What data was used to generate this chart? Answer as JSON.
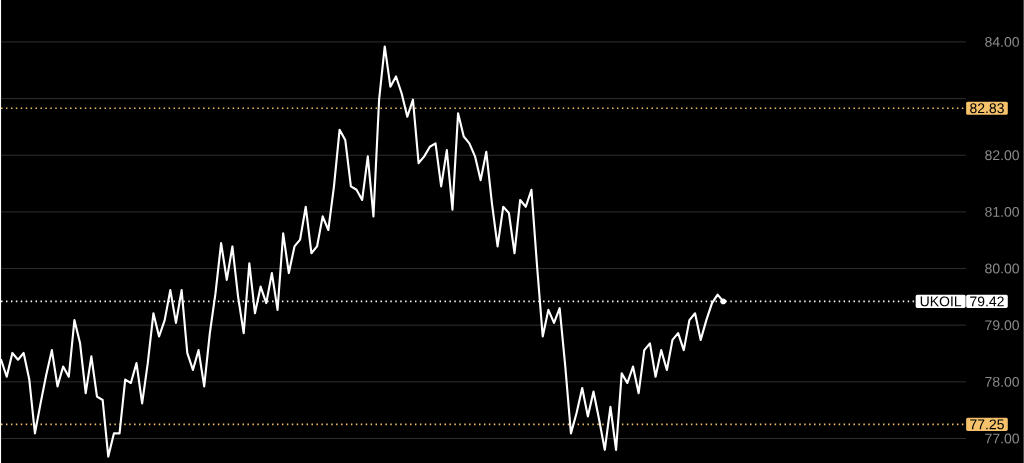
{
  "chart_data": {
    "type": "line",
    "categories": [
      null,
      null,
      null,
      null,
      null,
      null,
      null,
      null,
      null,
      null,
      null,
      null,
      null,
      null,
      null,
      null,
      null,
      null,
      null,
      null,
      null,
      null,
      null,
      null,
      null,
      null,
      null,
      null,
      null,
      null,
      null,
      null,
      null,
      null,
      null,
      null,
      null,
      null,
      null,
      null,
      null,
      null,
      null,
      null,
      null,
      null,
      null,
      null,
      null,
      null,
      null,
      null,
      null,
      null,
      null,
      null,
      null,
      null,
      null,
      null,
      null,
      null,
      null,
      null,
      null,
      null,
      null,
      null,
      null,
      null,
      null,
      null,
      null,
      null,
      null,
      null,
      null,
      null,
      null,
      null,
      null,
      null,
      null,
      null,
      null,
      null,
      null,
      null,
      null,
      null,
      null,
      null,
      null,
      null,
      null,
      null,
      null,
      null,
      null,
      null,
      null,
      null,
      null,
      null,
      null,
      null,
      null,
      null,
      null,
      null,
      null,
      null,
      null,
      null,
      null,
      null,
      null,
      null,
      null,
      null,
      null,
      null,
      null,
      null,
      null,
      null,
      null,
      null,
      null,
      null,
      null,
      null,
      null,
      null,
      null,
      null,
      null,
      null,
      null,
      null,
      null,
      null,
      null,
      null,
      null,
      null,
      null,
      null,
      null,
      null,
      null,
      null,
      null,
      null,
      null,
      null,
      null,
      null,
      null,
      null,
      null,
      null,
      null,
      null,
      null,
      null,
      null,
      null,
      null,
      null,
      null,
      null
    ],
    "series": [
      {
        "name": "UKOIL",
        "color": "#ffffff",
        "values": [
          78.39,
          78.09,
          78.51,
          78.39,
          78.51,
          78.04,
          77.09,
          77.62,
          78.12,
          78.56,
          77.92,
          78.27,
          78.09,
          79.09,
          78.68,
          77.8,
          78.45,
          77.74,
          77.68,
          76.68,
          77.09,
          77.09,
          78.04,
          77.98,
          78.33,
          77.62,
          78.33,
          79.21,
          78.8,
          79.09,
          79.62,
          79.04,
          79.62,
          78.51,
          78.21,
          78.56,
          77.92,
          78.86,
          79.56,
          80.45,
          79.8,
          80.39,
          79.51,
          78.86,
          80.09,
          79.21,
          79.68,
          79.39,
          79.92,
          79.27,
          80.62,
          79.92,
          80.39,
          80.51,
          81.09,
          80.27,
          80.39,
          80.92,
          80.68,
          81.45,
          82.45,
          82.27,
          81.45,
          81.39,
          81.21,
          81.98,
          80.92,
          82.98,
          83.92,
          83.21,
          83.39,
          83.09,
          82.68,
          82.98,
          81.86,
          81.98,
          82.15,
          82.21,
          81.45,
          82.09,
          81.04,
          82.74,
          82.33,
          82.21,
          81.98,
          81.56,
          82.06,
          81.15,
          80.39,
          81.09,
          80.98,
          80.27,
          81.21,
          81.09,
          81.39,
          80.04,
          78.8,
          79.27,
          79.04,
          79.3,
          78.27,
          77.09,
          77.45,
          77.89,
          77.39,
          77.83,
          77.33,
          76.8,
          77.56,
          76.8,
          78.15,
          77.98,
          78.27,
          77.8,
          78.56,
          78.68,
          78.09,
          78.56,
          78.21,
          78.74,
          78.86,
          78.56,
          79.09,
          79.21,
          78.74,
          79.09,
          79.39,
          79.54,
          79.42,
          null,
          null,
          null,
          null,
          null,
          null,
          null,
          null,
          null,
          null,
          null,
          null,
          null,
          null,
          null,
          null,
          null,
          null,
          null,
          null,
          null,
          null,
          null,
          null,
          null,
          null,
          null,
          null,
          null,
          null,
          null,
          null,
          null,
          null,
          null,
          null,
          null,
          null,
          null,
          null,
          null,
          null,
          null
        ]
      }
    ],
    "ylim": [
      76.56,
      84.74
    ],
    "yticks": [
      {
        "value": 77,
        "label": "77.00"
      },
      {
        "value": 78,
        "label": "78.00"
      },
      {
        "value": 79,
        "label": "79.00"
      },
      {
        "value": 80,
        "label": "80.00"
      },
      {
        "value": 81,
        "label": "81.00"
      },
      {
        "value": 82,
        "label": "82.00"
      },
      {
        "value": 83,
        "label": null
      },
      {
        "value": 84,
        "label": "84.00"
      }
    ],
    "tick_labels": "y",
    "grid": "y",
    "marker": "none",
    "line_style": "solid",
    "legend": false,
    "ref_lines": [
      {
        "axis": "y",
        "value": 82.83,
        "label": "82.83",
        "color": "#f5c26b",
        "line_style": "dotted"
      },
      {
        "axis": "y",
        "value": 77.25,
        "label": "77.25",
        "color": "#f5c26b",
        "line_style": "dotted"
      },
      {
        "axis": "y",
        "value": 79.42,
        "label": "79.42",
        "color": "#ffffff",
        "line_style": "dotted"
      }
    ]
  }
}
